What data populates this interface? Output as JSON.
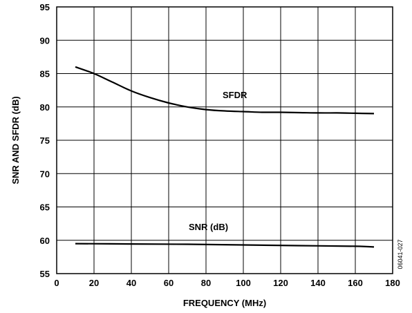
{
  "chart_data": {
    "type": "line",
    "title": "",
    "xlabel": "FREQUENCY (MHz)",
    "ylabel": "SNR AND SFDR (dB)",
    "xlim": [
      0,
      180
    ],
    "ylim": [
      55,
      95
    ],
    "xticks": [
      0,
      20,
      40,
      60,
      80,
      100,
      120,
      140,
      160,
      180
    ],
    "yticks": [
      55,
      60,
      65,
      70,
      75,
      80,
      85,
      90,
      95
    ],
    "grid": true,
    "legend": "none (series labeled inline)",
    "colors": {
      "line": "#000000",
      "grid": "#000000"
    },
    "series": [
      {
        "name": "SFDR",
        "x": [
          10,
          20,
          30,
          40,
          50,
          60,
          70,
          80,
          90,
          100,
          110,
          120,
          130,
          140,
          150,
          160,
          170
        ],
        "y": [
          86.0,
          85.0,
          83.7,
          82.4,
          81.4,
          80.6,
          80.0,
          79.6,
          79.4,
          79.3,
          79.2,
          79.2,
          79.15,
          79.1,
          79.1,
          79.05,
          79.0
        ]
      },
      {
        "name": "SNR (dB)",
        "x": [
          10,
          40,
          70,
          100,
          130,
          160,
          170
        ],
        "y": [
          59.5,
          59.45,
          59.4,
          59.3,
          59.2,
          59.1,
          59.0
        ]
      }
    ],
    "annotations": [
      "06041-027"
    ]
  }
}
